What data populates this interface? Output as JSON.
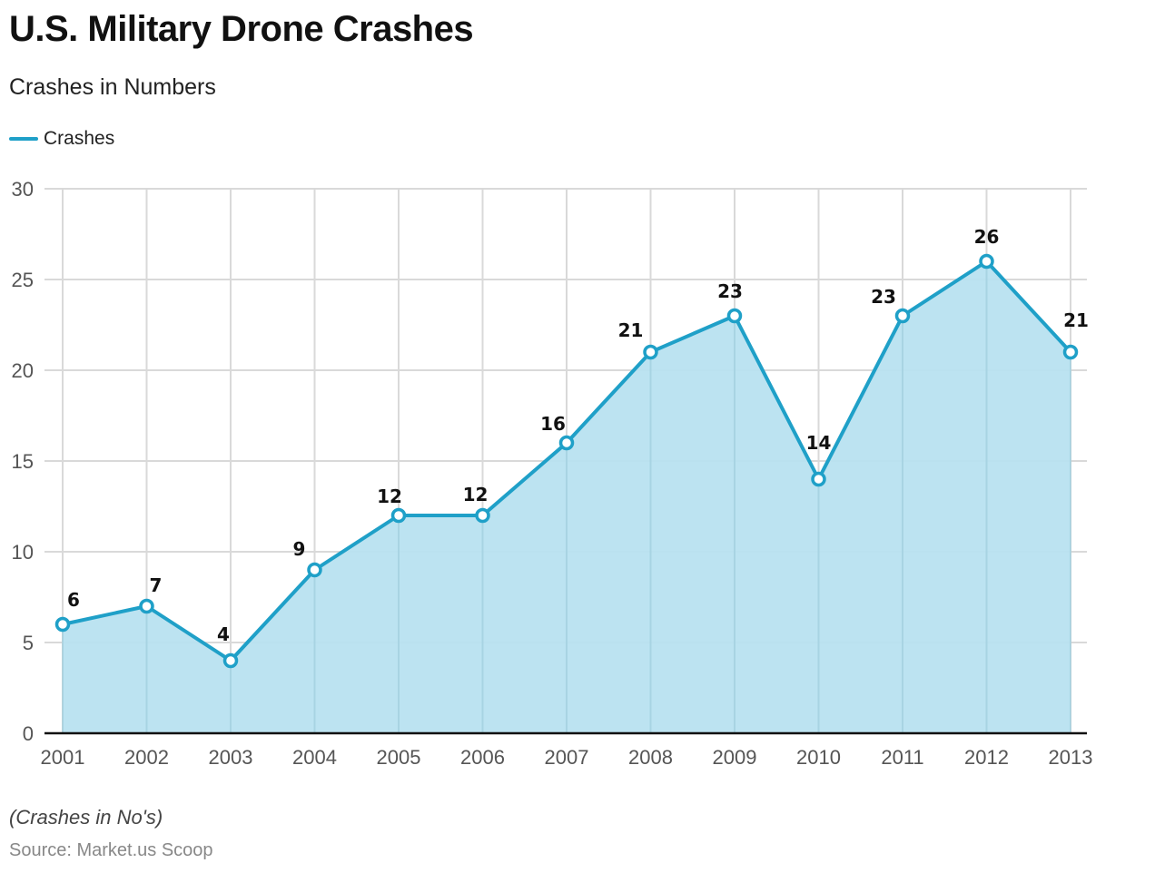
{
  "title": "U.S. Military Drone Crashes",
  "subtitle": "Crashes in Numbers",
  "note": "(Crashes in No's)",
  "source": "Source: Market.us Scoop",
  "colors": {
    "line": "#1fa0c8",
    "area": "#b8e2f0",
    "grid": "#d9d9d9",
    "axis": "#111111"
  },
  "chart_data": {
    "type": "area",
    "title": "U.S. Military Drone Crashes",
    "subtitle": "Crashes in Numbers",
    "xlabel": "",
    "ylabel": "",
    "categories": [
      "2001",
      "2002",
      "2003",
      "2004",
      "2005",
      "2006",
      "2007",
      "2008",
      "2009",
      "2010",
      "2011",
      "2012",
      "2013"
    ],
    "series": [
      {
        "name": "Crashes",
        "values": [
          6,
          7,
          4,
          9,
          12,
          12,
          16,
          21,
          23,
          14,
          23,
          26,
          21
        ]
      }
    ],
    "ylim": [
      0,
      30
    ],
    "yticks": [
      0,
      5,
      10,
      15,
      20,
      25,
      30
    ],
    "grid": true,
    "legend": "top-left",
    "data_labels": true,
    "markers": "hollow-circle"
  }
}
